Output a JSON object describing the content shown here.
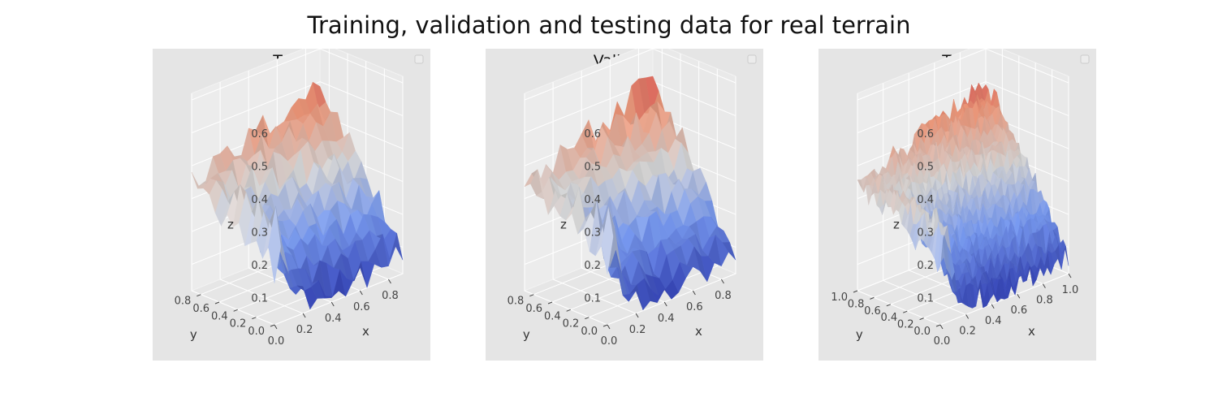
{
  "suptitle": "Training, validation and testing data for real terrain",
  "chart_data": [
    {
      "type": "surface3d",
      "title": "Train",
      "xlabel": "x",
      "ylabel": "y",
      "zlabel": "z",
      "xticks": [
        "0.0",
        "0.2",
        "0.4",
        "0.6",
        "0.8"
      ],
      "yticks": [
        "0.0",
        "0.2",
        "0.4",
        "0.6",
        "0.8"
      ],
      "zticks": [
        "0.1",
        "0.2",
        "0.3",
        "0.4",
        "0.5",
        "0.6"
      ],
      "xlim": [
        0,
        0.9
      ],
      "ylim": [
        0,
        0.9
      ],
      "zlim": [
        0.02,
        0.62
      ],
      "colormap": "coolwarm",
      "legend": "top-right (empty)",
      "grid_rows": 14,
      "grid_cols": 18
    },
    {
      "type": "surface3d",
      "title": "Validate",
      "xlabel": "x",
      "ylabel": "y",
      "zlabel": "z",
      "xticks": [
        "0.0",
        "0.2",
        "0.4",
        "0.6",
        "0.8"
      ],
      "yticks": [
        "0.0",
        "0.2",
        "0.4",
        "0.6",
        "0.8"
      ],
      "zticks": [
        "0.1",
        "0.2",
        "0.3",
        "0.4",
        "0.5",
        "0.6"
      ],
      "xlim": [
        0,
        0.9
      ],
      "ylim": [
        0,
        0.9
      ],
      "zlim": [
        0.02,
        0.62
      ],
      "colormap": "coolwarm",
      "legend": "top-right (empty)",
      "grid_rows": 14,
      "grid_cols": 18
    },
    {
      "type": "surface3d",
      "title": "Test",
      "xlabel": "x",
      "ylabel": "y",
      "zlabel": "z",
      "xticks": [
        "0.0",
        "0.2",
        "0.4",
        "0.6",
        "0.8",
        "1.0"
      ],
      "yticks": [
        "0.0",
        "0.2",
        "0.4",
        "0.6",
        "0.8",
        "1.0"
      ],
      "zticks": [
        "0.1",
        "0.2",
        "0.3",
        "0.4",
        "0.5",
        "0.6"
      ],
      "xlim": [
        0,
        1.0
      ],
      "ylim": [
        0,
        1.0
      ],
      "zlim": [
        0.02,
        0.62
      ],
      "colormap": "coolwarm",
      "legend": "top-right (empty)",
      "grid_rows": 30,
      "grid_cols": 36
    }
  ]
}
